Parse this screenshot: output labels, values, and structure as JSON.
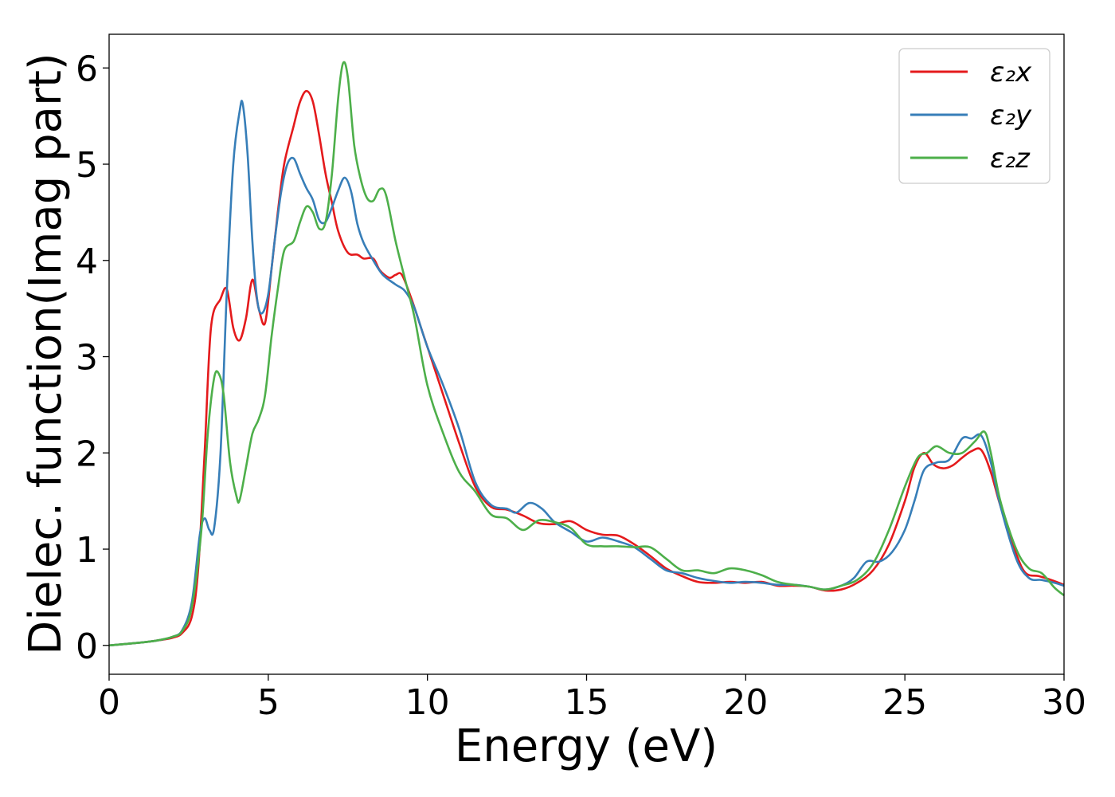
{
  "chart_data": {
    "type": "line",
    "xlabel": "Energy (eV)",
    "ylabel": "Dielec. function(Imag part)",
    "xlim": [
      0,
      30
    ],
    "ylim": [
      -0.3,
      6.35
    ],
    "xticks": [
      0,
      5,
      10,
      15,
      20,
      25,
      30
    ],
    "xtick_labels": [
      "0",
      "5",
      "10",
      "15",
      "20",
      "25",
      "30"
    ],
    "yticks": [
      0,
      1,
      2,
      3,
      4,
      5,
      6
    ],
    "ytick_labels": [
      "0",
      "1",
      "2",
      "3",
      "4",
      "5",
      "6"
    ],
    "grid": false,
    "legend_position": "top-right",
    "series": [
      {
        "name": "ε2x",
        "color": "#e41a1c",
        "points": [
          [
            0,
            0
          ],
          [
            1,
            0.03
          ],
          [
            1.5,
            0.05
          ],
          [
            2,
            0.08
          ],
          [
            2.3,
            0.13
          ],
          [
            2.6,
            0.3
          ],
          [
            2.8,
            0.8
          ],
          [
            3.0,
            2.0
          ],
          [
            3.2,
            3.3
          ],
          [
            3.5,
            3.6
          ],
          [
            3.7,
            3.7
          ],
          [
            3.9,
            3.3
          ],
          [
            4.1,
            3.17
          ],
          [
            4.3,
            3.4
          ],
          [
            4.5,
            3.8
          ],
          [
            4.7,
            3.5
          ],
          [
            4.9,
            3.35
          ],
          [
            5.1,
            3.9
          ],
          [
            5.3,
            4.5
          ],
          [
            5.5,
            5.0
          ],
          [
            5.8,
            5.4
          ],
          [
            6.0,
            5.65
          ],
          [
            6.2,
            5.76
          ],
          [
            6.4,
            5.65
          ],
          [
            6.6,
            5.3
          ],
          [
            6.8,
            4.9
          ],
          [
            7.0,
            4.6
          ],
          [
            7.2,
            4.3
          ],
          [
            7.5,
            4.08
          ],
          [
            7.8,
            4.06
          ],
          [
            8.0,
            4.02
          ],
          [
            8.3,
            4.02
          ],
          [
            8.5,
            3.9
          ],
          [
            8.8,
            3.82
          ],
          [
            9.0,
            3.85
          ],
          [
            9.2,
            3.85
          ],
          [
            9.5,
            3.6
          ],
          [
            9.8,
            3.3
          ],
          [
            10.0,
            3.1
          ],
          [
            10.5,
            2.6
          ],
          [
            11.0,
            2.1
          ],
          [
            11.5,
            1.65
          ],
          [
            12.0,
            1.44
          ],
          [
            12.5,
            1.41
          ],
          [
            13.0,
            1.35
          ],
          [
            13.5,
            1.27
          ],
          [
            14.0,
            1.26
          ],
          [
            14.5,
            1.29
          ],
          [
            15.0,
            1.2
          ],
          [
            15.5,
            1.15
          ],
          [
            16.0,
            1.14
          ],
          [
            16.5,
            1.05
          ],
          [
            17.0,
            0.93
          ],
          [
            17.5,
            0.8
          ],
          [
            18.0,
            0.72
          ],
          [
            18.5,
            0.66
          ],
          [
            19.0,
            0.65
          ],
          [
            19.5,
            0.66
          ],
          [
            20.0,
            0.65
          ],
          [
            20.5,
            0.66
          ],
          [
            21.0,
            0.62
          ],
          [
            21.5,
            0.62
          ],
          [
            22.0,
            0.61
          ],
          [
            22.5,
            0.57
          ],
          [
            23.0,
            0.58
          ],
          [
            23.5,
            0.65
          ],
          [
            24.0,
            0.78
          ],
          [
            24.5,
            1.05
          ],
          [
            25.0,
            1.5
          ],
          [
            25.3,
            1.85
          ],
          [
            25.6,
            2.0
          ],
          [
            25.9,
            1.88
          ],
          [
            26.2,
            1.84
          ],
          [
            26.5,
            1.87
          ],
          [
            26.8,
            1.95
          ],
          [
            27.1,
            2.02
          ],
          [
            27.4,
            2.03
          ],
          [
            27.7,
            1.8
          ],
          [
            28.0,
            1.45
          ],
          [
            28.5,
            0.95
          ],
          [
            28.8,
            0.75
          ],
          [
            29.2,
            0.72
          ],
          [
            29.6,
            0.68
          ],
          [
            30.0,
            0.63
          ]
        ]
      },
      {
        "name": "ε2y",
        "color": "#377eb8",
        "points": [
          [
            0,
            0
          ],
          [
            1,
            0.03
          ],
          [
            1.5,
            0.05
          ],
          [
            2,
            0.09
          ],
          [
            2.3,
            0.16
          ],
          [
            2.6,
            0.45
          ],
          [
            2.85,
            1.15
          ],
          [
            3.0,
            1.32
          ],
          [
            3.15,
            1.2
          ],
          [
            3.3,
            1.22
          ],
          [
            3.5,
            2.0
          ],
          [
            3.7,
            3.7
          ],
          [
            3.9,
            5.0
          ],
          [
            4.1,
            5.55
          ],
          [
            4.2,
            5.62
          ],
          [
            4.35,
            5.1
          ],
          [
            4.5,
            4.2
          ],
          [
            4.65,
            3.6
          ],
          [
            4.8,
            3.45
          ],
          [
            5.0,
            3.65
          ],
          [
            5.2,
            4.2
          ],
          [
            5.4,
            4.7
          ],
          [
            5.6,
            5.0
          ],
          [
            5.8,
            5.06
          ],
          [
            6.0,
            4.9
          ],
          [
            6.2,
            4.75
          ],
          [
            6.4,
            4.63
          ],
          [
            6.6,
            4.42
          ],
          [
            6.8,
            4.4
          ],
          [
            7.0,
            4.55
          ],
          [
            7.2,
            4.73
          ],
          [
            7.4,
            4.86
          ],
          [
            7.6,
            4.72
          ],
          [
            7.8,
            4.38
          ],
          [
            8.0,
            4.18
          ],
          [
            8.3,
            4.0
          ],
          [
            8.6,
            3.85
          ],
          [
            9.0,
            3.75
          ],
          [
            9.3,
            3.68
          ],
          [
            9.6,
            3.5
          ],
          [
            10.0,
            3.1
          ],
          [
            10.5,
            2.7
          ],
          [
            11.0,
            2.25
          ],
          [
            11.5,
            1.7
          ],
          [
            12.0,
            1.46
          ],
          [
            12.5,
            1.42
          ],
          [
            12.8,
            1.38
          ],
          [
            13.2,
            1.48
          ],
          [
            13.6,
            1.42
          ],
          [
            14.0,
            1.28
          ],
          [
            14.5,
            1.18
          ],
          [
            15.0,
            1.08
          ],
          [
            15.5,
            1.12
          ],
          [
            16.0,
            1.08
          ],
          [
            16.5,
            1.02
          ],
          [
            17.0,
            0.9
          ],
          [
            17.5,
            0.78
          ],
          [
            18.0,
            0.75
          ],
          [
            18.5,
            0.7
          ],
          [
            19.0,
            0.67
          ],
          [
            19.5,
            0.65
          ],
          [
            20.0,
            0.66
          ],
          [
            20.5,
            0.65
          ],
          [
            21.0,
            0.63
          ],
          [
            21.5,
            0.63
          ],
          [
            22.0,
            0.61
          ],
          [
            22.5,
            0.58
          ],
          [
            23.0,
            0.62
          ],
          [
            23.4,
            0.7
          ],
          [
            23.8,
            0.87
          ],
          [
            24.2,
            0.87
          ],
          [
            24.6,
            0.97
          ],
          [
            25.0,
            1.2
          ],
          [
            25.3,
            1.5
          ],
          [
            25.6,
            1.82
          ],
          [
            26.0,
            1.9
          ],
          [
            26.4,
            1.93
          ],
          [
            26.8,
            2.15
          ],
          [
            27.1,
            2.15
          ],
          [
            27.4,
            2.18
          ],
          [
            27.7,
            1.9
          ],
          [
            28.0,
            1.45
          ],
          [
            28.5,
            0.9
          ],
          [
            28.9,
            0.7
          ],
          [
            29.3,
            0.68
          ],
          [
            29.7,
            0.65
          ],
          [
            30.0,
            0.62
          ]
        ]
      },
      {
        "name": "ε2z",
        "color": "#4daf4a",
        "points": [
          [
            0,
            0
          ],
          [
            1,
            0.03
          ],
          [
            1.5,
            0.05
          ],
          [
            2,
            0.09
          ],
          [
            2.3,
            0.15
          ],
          [
            2.6,
            0.4
          ],
          [
            2.9,
            1.2
          ],
          [
            3.1,
            2.2
          ],
          [
            3.3,
            2.78
          ],
          [
            3.45,
            2.82
          ],
          [
            3.6,
            2.6
          ],
          [
            3.8,
            1.9
          ],
          [
            4.0,
            1.55
          ],
          [
            4.1,
            1.51
          ],
          [
            4.3,
            1.85
          ],
          [
            4.5,
            2.2
          ],
          [
            4.7,
            2.35
          ],
          [
            4.9,
            2.6
          ],
          [
            5.1,
            3.2
          ],
          [
            5.3,
            3.7
          ],
          [
            5.5,
            4.1
          ],
          [
            5.8,
            4.2
          ],
          [
            6.0,
            4.4
          ],
          [
            6.2,
            4.56
          ],
          [
            6.4,
            4.5
          ],
          [
            6.6,
            4.33
          ],
          [
            6.8,
            4.4
          ],
          [
            7.0,
            4.9
          ],
          [
            7.2,
            5.7
          ],
          [
            7.35,
            6.05
          ],
          [
            7.5,
            5.9
          ],
          [
            7.7,
            5.2
          ],
          [
            7.9,
            4.85
          ],
          [
            8.1,
            4.65
          ],
          [
            8.3,
            4.62
          ],
          [
            8.5,
            4.74
          ],
          [
            8.7,
            4.68
          ],
          [
            9.0,
            4.2
          ],
          [
            9.3,
            3.8
          ],
          [
            9.6,
            3.4
          ],
          [
            10.0,
            2.7
          ],
          [
            10.5,
            2.2
          ],
          [
            11.0,
            1.8
          ],
          [
            11.5,
            1.6
          ],
          [
            12.0,
            1.36
          ],
          [
            12.5,
            1.32
          ],
          [
            13.0,
            1.2
          ],
          [
            13.5,
            1.3
          ],
          [
            14.0,
            1.28
          ],
          [
            14.5,
            1.22
          ],
          [
            15.0,
            1.05
          ],
          [
            15.5,
            1.03
          ],
          [
            16.0,
            1.03
          ],
          [
            16.5,
            1.02
          ],
          [
            17.0,
            1.02
          ],
          [
            17.5,
            0.9
          ],
          [
            18.0,
            0.78
          ],
          [
            18.5,
            0.78
          ],
          [
            19.0,
            0.75
          ],
          [
            19.5,
            0.8
          ],
          [
            20.0,
            0.78
          ],
          [
            20.5,
            0.73
          ],
          [
            21.0,
            0.66
          ],
          [
            21.5,
            0.63
          ],
          [
            22.0,
            0.61
          ],
          [
            22.5,
            0.58
          ],
          [
            23.0,
            0.62
          ],
          [
            23.5,
            0.68
          ],
          [
            24.0,
            0.85
          ],
          [
            24.5,
            1.2
          ],
          [
            25.0,
            1.65
          ],
          [
            25.4,
            1.95
          ],
          [
            25.7,
            2.0
          ],
          [
            26.0,
            2.07
          ],
          [
            26.4,
            2.0
          ],
          [
            26.8,
            2.0
          ],
          [
            27.2,
            2.12
          ],
          [
            27.5,
            2.22
          ],
          [
            27.7,
            2.0
          ],
          [
            28.0,
            1.5
          ],
          [
            28.5,
            1.0
          ],
          [
            28.9,
            0.8
          ],
          [
            29.3,
            0.75
          ],
          [
            29.7,
            0.6
          ],
          [
            30.0,
            0.52
          ]
        ]
      }
    ]
  },
  "legend": {
    "items": [
      {
        "label": "ε₂x",
        "color": "#e41a1c"
      },
      {
        "label": "ε₂y",
        "color": "#377eb8"
      },
      {
        "label": "ε₂z",
        "color": "#4daf4a"
      }
    ]
  }
}
